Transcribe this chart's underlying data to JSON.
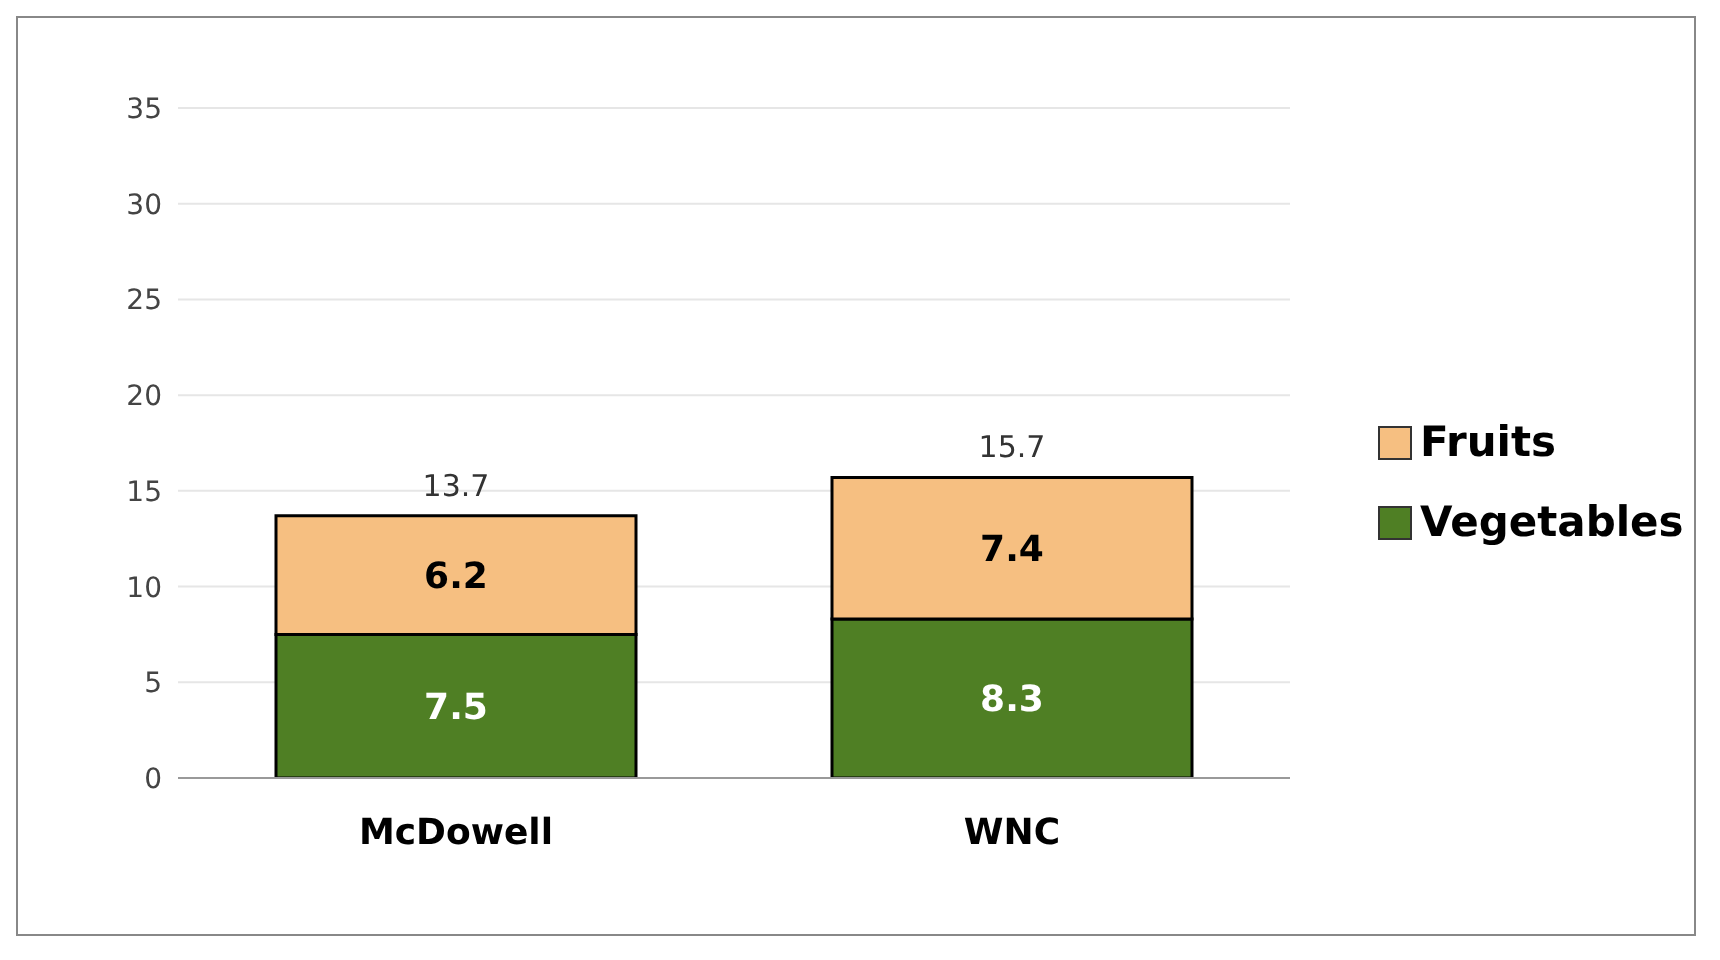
{
  "chart_data": {
    "type": "bar",
    "stacked": true,
    "categories": [
      "McDowell",
      "WNC"
    ],
    "series": [
      {
        "name": "Vegetables",
        "color": "#4f7f24",
        "values": [
          7.5,
          8.3
        ]
      },
      {
        "name": "Fruits",
        "color": "#f6bf81",
        "values": [
          6.2,
          7.4
        ]
      }
    ],
    "totals": [
      "13.7",
      "15.7"
    ],
    "data_labels": true,
    "ylim": [
      0,
      35
    ],
    "yticks": [
      0,
      5,
      10,
      15,
      20,
      25,
      30,
      35
    ],
    "grid": "y",
    "legend": "right"
  }
}
